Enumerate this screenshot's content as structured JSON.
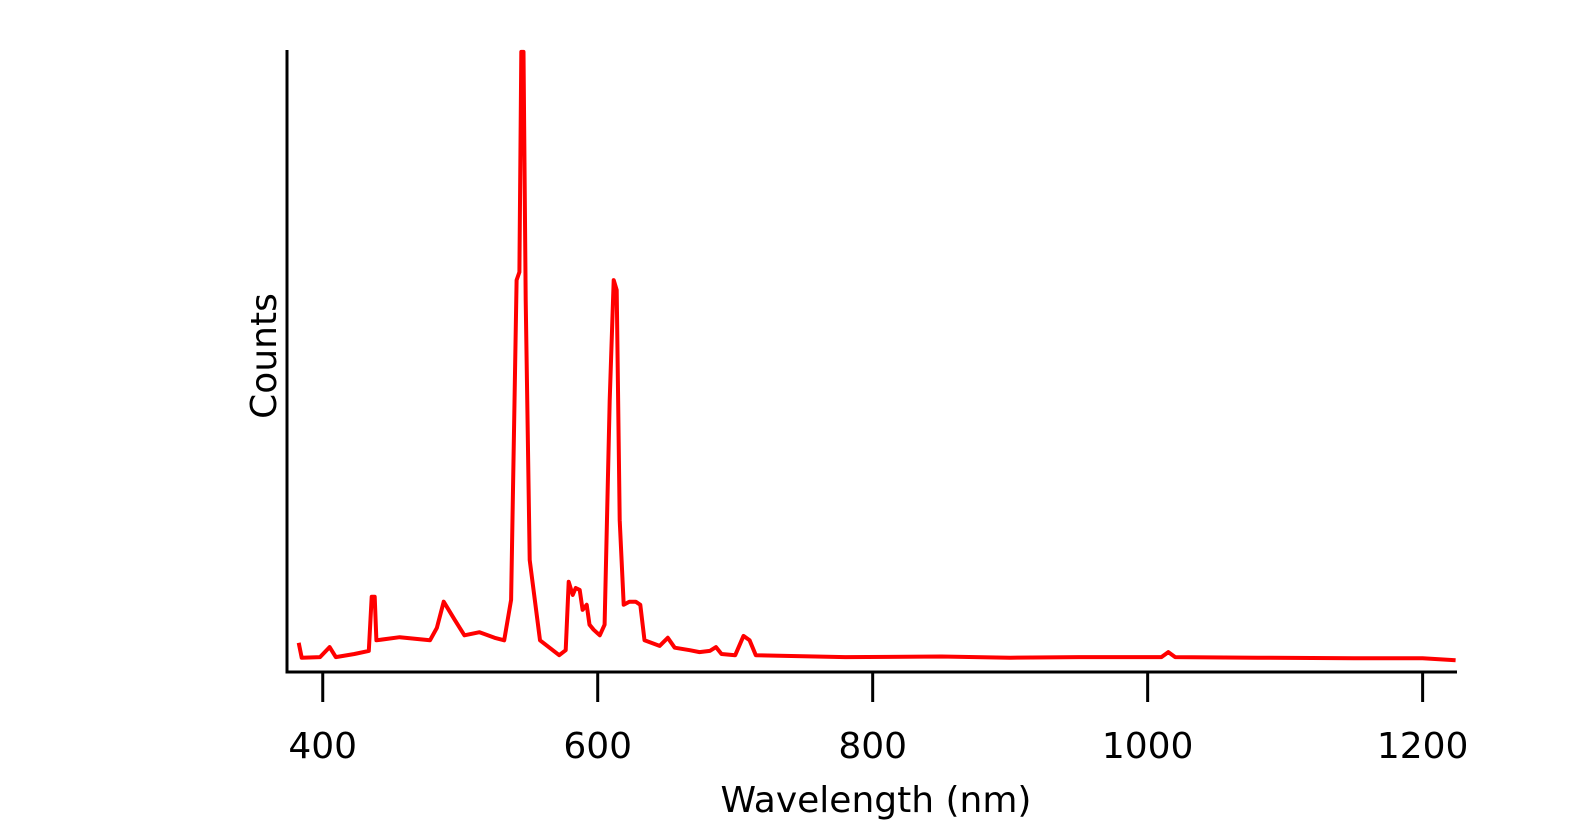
{
  "chart_data": {
    "type": "line",
    "title": "",
    "xlabel": "Wavelength (nm)",
    "ylabel": "Counts",
    "xlim": [
      374,
      1225
    ],
    "ylim": [
      0,
      1
    ],
    "x_ticks": [
      400,
      600,
      800,
      1000,
      1200
    ],
    "x_tick_labels": [
      "400",
      "600",
      "800",
      "1000",
      "1200"
    ],
    "y_ticks": [],
    "grid": false,
    "legend": "none",
    "colors": {
      "series": "#ff0000",
      "axis": "#000000"
    },
    "series": [
      {
        "points": [
          [
            382.5,
            0.047
          ],
          [
            384.7,
            0.023
          ],
          [
            398,
            0.024
          ],
          [
            405,
            0.04
          ],
          [
            409.5,
            0.024
          ],
          [
            423,
            0.029
          ],
          [
            433.5,
            0.034
          ],
          [
            435.6,
            0.121
          ],
          [
            437.8,
            0.121
          ],
          [
            439,
            0.051
          ],
          [
            456,
            0.056
          ],
          [
            478,
            0.051
          ],
          [
            483,
            0.071
          ],
          [
            488,
            0.113
          ],
          [
            496,
            0.084
          ],
          [
            503,
            0.059
          ],
          [
            514,
            0.064
          ],
          [
            525,
            0.055
          ],
          [
            532,
            0.051
          ],
          [
            537,
            0.116
          ],
          [
            541,
            0.63
          ],
          [
            543,
            0.643
          ],
          [
            544.4,
            0.997
          ],
          [
            546,
            0.997
          ],
          [
            547.6,
            0.598
          ],
          [
            550.5,
            0.18
          ],
          [
            558,
            0.051
          ],
          [
            572,
            0.027
          ],
          [
            576.7,
            0.035
          ],
          [
            578.9,
            0.145
          ],
          [
            581.8,
            0.124
          ],
          [
            584,
            0.135
          ],
          [
            586.9,
            0.132
          ],
          [
            589,
            0.1
          ],
          [
            592,
            0.108
          ],
          [
            594,
            0.076
          ],
          [
            597,
            0.068
          ],
          [
            601.5,
            0.059
          ],
          [
            605,
            0.076
          ],
          [
            608.7,
            0.437
          ],
          [
            611.6,
            0.63
          ],
          [
            613.8,
            0.614
          ],
          [
            616,
            0.244
          ],
          [
            618.9,
            0.108
          ],
          [
            623,
            0.113
          ],
          [
            627.6,
            0.113
          ],
          [
            631,
            0.108
          ],
          [
            634,
            0.051
          ],
          [
            645,
            0.042
          ],
          [
            651,
            0.055
          ],
          [
            656,
            0.039
          ],
          [
            667,
            0.035
          ],
          [
            674,
            0.032
          ],
          [
            681.5,
            0.034
          ],
          [
            686,
            0.04
          ],
          [
            690,
            0.029
          ],
          [
            700,
            0.027
          ],
          [
            706,
            0.058
          ],
          [
            710.5,
            0.051
          ],
          [
            715,
            0.027
          ],
          [
            732,
            0.026
          ],
          [
            780,
            0.024
          ],
          [
            850,
            0.025
          ],
          [
            900,
            0.023
          ],
          [
            950,
            0.024
          ],
          [
            1010,
            0.024
          ],
          [
            1015,
            0.032
          ],
          [
            1020,
            0.024
          ],
          [
            1080,
            0.023
          ],
          [
            1150,
            0.022
          ],
          [
            1200,
            0.022
          ],
          [
            1224,
            0.019
          ]
        ]
      }
    ]
  }
}
